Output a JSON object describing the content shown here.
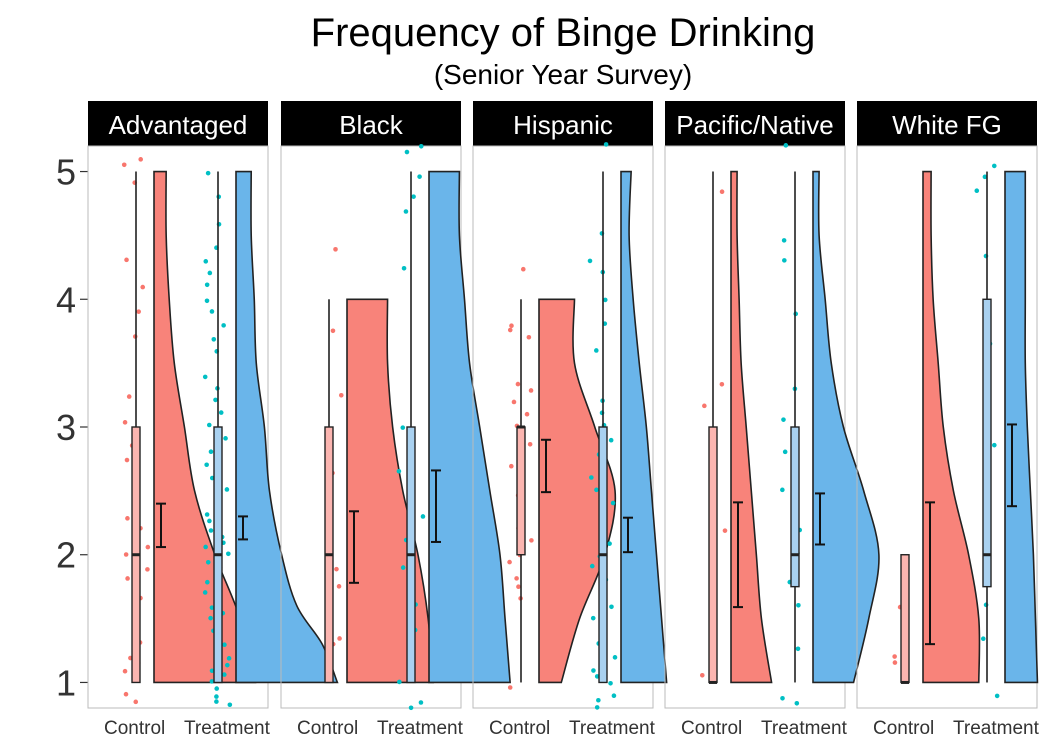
{
  "chart_data": {
    "type": "raincloud",
    "title": "Frequency of Binge Drinking",
    "subtitle": "(Senior Year Survey)",
    "categories": [
      "Control",
      "Treatment"
    ],
    "ylim": [
      0.8,
      5.2
    ],
    "yticks": [
      1,
      2,
      3,
      4,
      5
    ],
    "legend": "none",
    "grid": false,
    "colors": {
      "control": "#F8766D",
      "control_box": "#FBB5B0",
      "control_density": "#F8837A",
      "treatment": "#00BFC4",
      "treatment_box": "#A9D1F0",
      "treatment_density": "#6AB5EA",
      "strip": "#000000",
      "strip_text": "#ffffff",
      "panel_border": "#bbbbbb"
    },
    "panels": [
      {
        "name": "Advantaged",
        "series": [
          {
            "name": "Control",
            "box": {
              "min": 1,
              "q1": 1,
              "median": 2,
              "q3": 3,
              "max": 5
            },
            "mean": 2.23,
            "ci": [
              2.06,
              2.4
            ],
            "density": [
              [
                1,
                1.0
              ],
              [
                1.5,
                0.85
              ],
              [
                2,
                0.6
              ],
              [
                2.5,
                0.4
              ],
              [
                3,
                0.3
              ],
              [
                3.5,
                0.2
              ],
              [
                4,
                0.15
              ],
              [
                4.5,
                0.12
              ],
              [
                5,
                0.12
              ]
            ],
            "points": [
              0.85,
              0.9,
              1.05,
              1.1,
              1.15,
              1.2,
              1.3,
              1.5,
              1.65,
              1.7,
              1.8,
              1.9,
              2.0,
              2.05,
              2.1,
              2.2,
              2.3,
              2.45,
              2.6,
              2.75,
              2.85,
              3.05,
              3.25,
              3.7,
              3.9,
              4.1,
              4.3,
              4.9,
              5.05,
              5.1
            ]
          },
          {
            "name": "Treatment",
            "box": {
              "min": 1,
              "q1": 1,
              "median": 2,
              "q3": 3,
              "max": 5
            },
            "mean": 2.22,
            "ci": [
              2.12,
              2.3
            ],
            "density": [
              [
                1,
                1.0
              ],
              [
                1.3,
                0.85
              ],
              [
                1.6,
                0.6
              ],
              [
                2,
                0.45
              ],
              [
                2.5,
                0.33
              ],
              [
                3,
                0.28
              ],
              [
                3.5,
                0.2
              ],
              [
                4,
                0.18
              ],
              [
                4.5,
                0.15
              ],
              [
                5,
                0.15
              ]
            ],
            "points": [
              0.82,
              0.85,
              0.9,
              0.95,
              1.0,
              1.05,
              1.1,
              1.15,
              1.2,
              1.3,
              1.35,
              1.4,
              1.5,
              1.55,
              1.6,
              1.7,
              1.75,
              1.8,
              1.85,
              1.9,
              1.95,
              2.0,
              2.05,
              2.1,
              2.15,
              2.2,
              2.25,
              2.3,
              2.4,
              2.5,
              2.55,
              2.6,
              2.7,
              2.8,
              2.9,
              3.0,
              3.1,
              3.2,
              3.3,
              3.4,
              3.6,
              3.7,
              3.8,
              3.9,
              4.0,
              4.1,
              4.2,
              4.3,
              4.4,
              4.6,
              4.8,
              5.0
            ]
          }
        ]
      },
      {
        "name": "Black",
        "series": [
          {
            "name": "Control",
            "box": {
              "min": 1,
              "q1": 1,
              "median": 2,
              "q3": 3,
              "max": 4
            },
            "mean": 2.05,
            "ci": [
              1.78,
              2.34
            ],
            "density": [
              [
                1,
                0.85
              ],
              [
                1.5,
                0.8
              ],
              [
                2,
                0.7
              ],
              [
                2.5,
                0.55
              ],
              [
                3,
                0.45
              ],
              [
                3.5,
                0.4
              ],
              [
                4,
                0.4
              ]
            ],
            "points": [
              1.3,
              1.35,
              1.35,
              1.75,
              1.85,
              1.9,
              2.0,
              2.65,
              2.75,
              3.25,
              3.75,
              4.4
            ]
          },
          {
            "name": "Treatment",
            "box": {
              "min": 1,
              "q1": 1,
              "median": 2,
              "q3": 3,
              "max": 5
            },
            "mean": 2.38,
            "ci": [
              2.1,
              2.66
            ],
            "density": [
              [
                1,
                0.8
              ],
              [
                1.5,
                0.75
              ],
              [
                2,
                0.7
              ],
              [
                2.5,
                0.6
              ],
              [
                3,
                0.5
              ],
              [
                3.5,
                0.4
              ],
              [
                4,
                0.35
              ],
              [
                4.5,
                0.3
              ],
              [
                5,
                0.3
              ]
            ],
            "points": [
              0.8,
              0.85,
              1.0,
              1.2,
              1.4,
              1.6,
              1.9,
              2.1,
              2.3,
              2.65,
              3.0,
              4.25,
              4.7,
              4.8,
              4.95,
              5.15,
              5.2
            ]
          }
        ]
      },
      {
        "name": "Hispanic",
        "series": [
          {
            "name": "Control",
            "box": {
              "min": 1,
              "q1": 2,
              "median": 3,
              "q3": 3,
              "max": 4
            },
            "mean": 2.7,
            "ci": [
              2.49,
              2.9
            ],
            "density": [
              [
                1,
                0.22
              ],
              [
                1.5,
                0.4
              ],
              [
                2,
                0.65
              ],
              [
                2.5,
                0.75
              ],
              [
                3,
                0.55
              ],
              [
                3.5,
                0.35
              ],
              [
                4,
                0.35
              ]
            ],
            "points": [
              0.95,
              1.65,
              1.75,
              1.8,
              1.95,
              2.0,
              2.1,
              2.2,
              2.45,
              2.7,
              2.85,
              2.95,
              3.0,
              3.1,
              3.2,
              3.3,
              3.35,
              3.7,
              3.75,
              3.8,
              4.25
            ]
          },
          {
            "name": "Treatment",
            "box": {
              "min": 1,
              "q1": 1,
              "median": 2,
              "q3": 3,
              "max": 5
            },
            "mean": 2.15,
            "ci": [
              2.02,
              2.29
            ],
            "density": [
              [
                1,
                0.45
              ],
              [
                1.5,
                0.4
              ],
              [
                2,
                0.35
              ],
              [
                2.5,
                0.3
              ],
              [
                3,
                0.25
              ],
              [
                3.5,
                0.18
              ],
              [
                4,
                0.12
              ],
              [
                4.5,
                0.08
              ],
              [
                5,
                0.1
              ]
            ],
            "points": [
              0.8,
              0.85,
              0.9,
              1.0,
              1.05,
              1.1,
              1.2,
              1.3,
              1.4,
              1.5,
              1.6,
              1.7,
              1.8,
              1.9,
              2.0,
              2.1,
              2.2,
              2.3,
              2.4,
              2.5,
              2.6,
              2.8,
              2.9,
              3.0,
              3.1,
              3.2,
              3.6,
              3.8,
              4.0,
              4.2,
              4.3,
              4.5,
              5.2
            ]
          }
        ]
      },
      {
        "name": "Pacific/Native",
        "series": [
          {
            "name": "Control",
            "box": {
              "min": 1,
              "q1": 1,
              "median": 1,
              "q3": 3,
              "max": 5
            },
            "mean": 2.0,
            "ci": [
              1.59,
              2.41
            ],
            "density": [
              [
                1,
                0.4
              ],
              [
                1.5,
                0.3
              ],
              [
                2,
                0.25
              ],
              [
                2.5,
                0.2
              ],
              [
                3,
                0.15
              ],
              [
                3.5,
                0.1
              ],
              [
                4,
                0.08
              ],
              [
                4.5,
                0.06
              ],
              [
                5,
                0.06
              ]
            ],
            "points": [
              1.05,
              1.1,
              2.2,
              3.15,
              3.35,
              4.85
            ]
          },
          {
            "name": "Treatment",
            "box": {
              "min": 1,
              "q1": 1.75,
              "median": 2,
              "q3": 3,
              "max": 5
            },
            "mean": 2.28,
            "ci": [
              2.08,
              2.48
            ],
            "density": [
              [
                1,
                0.4
              ],
              [
                1.5,
                0.55
              ],
              [
                2,
                0.65
              ],
              [
                2.5,
                0.5
              ],
              [
                3,
                0.3
              ],
              [
                3.5,
                0.18
              ],
              [
                4,
                0.12
              ],
              [
                4.5,
                0.06
              ],
              [
                5,
                0.06
              ]
            ],
            "points": [
              0.85,
              0.87,
              1.25,
              1.6,
              1.8,
              2.0,
              2.2,
              2.5,
              2.8,
              3.05,
              3.3,
              3.9,
              4.3,
              4.45,
              5.2
            ]
          }
        ]
      },
      {
        "name": "White FG",
        "series": [
          {
            "name": "Control",
            "box": {
              "min": 1,
              "q1": 1,
              "median": 1,
              "q3": 2,
              "max": 2
            },
            "mean": 1.85,
            "ci": [
              1.3,
              2.41
            ],
            "density": [
              [
                1,
                0.55
              ],
              [
                1.5,
                0.55
              ],
              [
                2,
                0.45
              ],
              [
                2.5,
                0.3
              ],
              [
                3,
                0.2
              ],
              [
                3.5,
                0.15
              ],
              [
                4,
                0.1
              ],
              [
                4.5,
                0.08
              ],
              [
                5,
                0.08
              ]
            ],
            "points": [
              1.15,
              1.2,
              1.6,
              1.7
            ]
          },
          {
            "name": "Treatment",
            "box": {
              "min": 1,
              "q1": 1.75,
              "median": 2,
              "q3": 4,
              "max": 5
            },
            "mean": 2.7,
            "ci": [
              2.38,
              3.02
            ],
            "density": [
              [
                1,
                0.32
              ],
              [
                1.5,
                0.3
              ],
              [
                2,
                0.28
              ],
              [
                2.5,
                0.25
              ],
              [
                3,
                0.22
              ],
              [
                3.5,
                0.2
              ],
              [
                4,
                0.2
              ],
              [
                4.5,
                0.2
              ],
              [
                5,
                0.2
              ]
            ],
            "points": [
              0.9,
              1.35,
              1.6,
              2.85,
              3.65,
              4.35,
              4.85,
              4.95,
              5.05
            ]
          }
        ]
      }
    ]
  }
}
